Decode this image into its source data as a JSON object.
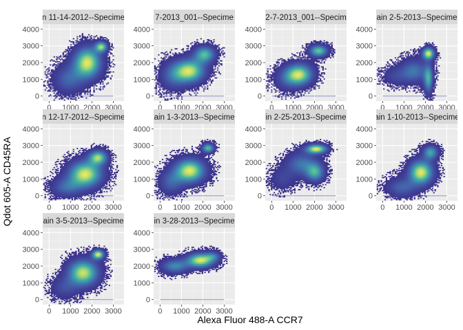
{
  "chart_data": {
    "type": "heatmap",
    "xlabel": "Alexa Fluor 488-A CCR7",
    "ylabel": "Qdot 605-A CD45RA",
    "xlim": [
      -300,
      3500
    ],
    "ylim": [
      -300,
      4300
    ],
    "x_ticks": [
      0,
      1000,
      2000,
      3000
    ],
    "y_ticks": [
      0,
      1000,
      2000,
      3000,
      4000
    ],
    "grid": true,
    "colormap": [
      "#3b2f8a",
      "#4459a8",
      "#3e88b0",
      "#45b2a3",
      "#93d27c",
      "#e7e862"
    ],
    "panel_background": "#ebebeb",
    "strip_background": "#d9d9d9",
    "panels": [
      {
        "strip": "n 11-14-2012--Specime",
        "clusters": [
          {
            "x": 2450,
            "y": 2950,
            "sx": 200,
            "sy": 220,
            "w": 1.0
          },
          {
            "x": 1800,
            "y": 2000,
            "sx": 450,
            "sy": 650,
            "w": 1.2
          },
          {
            "x": 900,
            "y": 1000,
            "sx": 500,
            "sy": 600,
            "w": 0.5
          }
        ]
      },
      {
        "strip": "7-2013_001--Specime",
        "clusters": [
          {
            "x": 2100,
            "y": 2500,
            "sx": 350,
            "sy": 350,
            "w": 0.8
          },
          {
            "x": 1400,
            "y": 1500,
            "sx": 500,
            "sy": 500,
            "w": 1.0
          },
          {
            "x": 600,
            "y": 1200,
            "sx": 450,
            "sy": 600,
            "w": 0.4
          }
        ]
      },
      {
        "strip": "2-7-2013_001--Specim",
        "clusters": [
          {
            "x": 2200,
            "y": 2700,
            "sx": 300,
            "sy": 250,
            "w": 0.9
          },
          {
            "x": 1300,
            "y": 1300,
            "sx": 450,
            "sy": 450,
            "w": 1.0
          },
          {
            "x": 700,
            "y": 1000,
            "sx": 450,
            "sy": 500,
            "w": 0.3
          }
        ]
      },
      {
        "strip": "ain 2-5-2013--Specime",
        "clusters": [
          {
            "x": 2150,
            "y": 2550,
            "sx": 200,
            "sy": 250,
            "w": 1.2
          },
          {
            "x": 2150,
            "y": 1000,
            "sx": 150,
            "sy": 600,
            "w": 0.8
          },
          {
            "x": 1500,
            "y": 1500,
            "sx": 450,
            "sy": 500,
            "w": 0.6
          },
          {
            "x": 600,
            "y": 1200,
            "sx": 450,
            "sy": 400,
            "w": 0.3
          }
        ]
      },
      {
        "strip": "n 12-17-2012--Specime",
        "clusters": [
          {
            "x": 2300,
            "y": 2300,
            "sx": 300,
            "sy": 300,
            "w": 1.0
          },
          {
            "x": 1700,
            "y": 1300,
            "sx": 550,
            "sy": 550,
            "w": 1.2
          },
          {
            "x": 800,
            "y": 500,
            "sx": 500,
            "sy": 400,
            "w": 0.5
          }
        ]
      },
      {
        "strip": "ain 1-3-2013--Specime",
        "clusters": [
          {
            "x": 2250,
            "y": 2850,
            "sx": 200,
            "sy": 200,
            "w": 1.0
          },
          {
            "x": 1400,
            "y": 1500,
            "sx": 500,
            "sy": 500,
            "w": 1.3
          },
          {
            "x": 500,
            "y": 800,
            "sx": 400,
            "sy": 500,
            "w": 0.5
          }
        ]
      },
      {
        "strip": "in 2-25-2013--Specime",
        "clusters": [
          {
            "x": 2100,
            "y": 2800,
            "sx": 350,
            "sy": 200,
            "w": 1.2
          },
          {
            "x": 2050,
            "y": 1400,
            "sx": 300,
            "sy": 400,
            "w": 0.8
          },
          {
            "x": 1400,
            "y": 1900,
            "sx": 500,
            "sy": 500,
            "w": 0.6
          },
          {
            "x": 500,
            "y": 1000,
            "sx": 400,
            "sy": 500,
            "w": 0.3
          }
        ]
      },
      {
        "strip": "ain 1-10-2013--Specime",
        "clusters": [
          {
            "x": 2250,
            "y": 2600,
            "sx": 250,
            "sy": 300,
            "w": 0.8
          },
          {
            "x": 1800,
            "y": 1400,
            "sx": 400,
            "sy": 500,
            "w": 1.2
          },
          {
            "x": 900,
            "y": 500,
            "sx": 500,
            "sy": 400,
            "w": 0.5
          }
        ]
      },
      {
        "strip": "ain 3-5-2013--Specime",
        "clusters": [
          {
            "x": 2300,
            "y": 2700,
            "sx": 200,
            "sy": 200,
            "w": 1.0
          },
          {
            "x": 1600,
            "y": 1600,
            "sx": 500,
            "sy": 550,
            "w": 1.0
          },
          {
            "x": 700,
            "y": 700,
            "sx": 450,
            "sy": 450,
            "w": 0.3
          }
        ]
      },
      {
        "strip": "in 3-28-2013--Specime",
        "clusters": [
          {
            "x": 1900,
            "y": 2350,
            "sx": 450,
            "sy": 300,
            "w": 1.4
          },
          {
            "x": 700,
            "y": 2000,
            "sx": 450,
            "sy": 300,
            "w": 0.8
          },
          {
            "x": 2500,
            "y": 2600,
            "sx": 250,
            "sy": 200,
            "w": 0.5
          }
        ]
      }
    ]
  }
}
